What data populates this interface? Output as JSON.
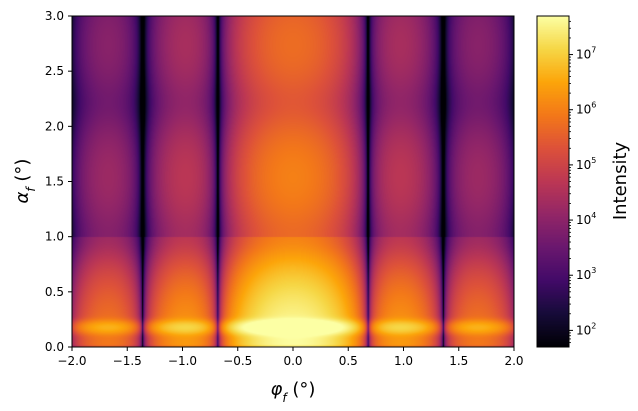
{
  "chart_data": {
    "type": "heatmap",
    "title": "",
    "xlabel": "φ_f (°)",
    "ylabel": "α_f (°)",
    "xlim": [
      -2.0,
      2.0
    ],
    "ylim": [
      0.0,
      3.0
    ],
    "xticks": [
      -2.0,
      -1.5,
      -1.0,
      -0.5,
      0.0,
      0.5,
      1.0,
      1.5,
      2.0
    ],
    "xtick_labels": [
      "−2.0",
      "−1.5",
      "−1.0",
      "−0.5",
      "0.0",
      "0.5",
      "1.0",
      "1.5",
      "2.0"
    ],
    "yticks": [
      0.0,
      0.5,
      1.0,
      1.5,
      2.0,
      2.5,
      3.0
    ],
    "ytick_labels": [
      "0.0",
      "0.5",
      "1.0",
      "1.5",
      "2.0",
      "2.5",
      "3.0"
    ],
    "colormap": "inferno",
    "colorbar": {
      "label": "Intensity",
      "scale": "log",
      "range": [
        50,
        50000000
      ],
      "ticks": [
        100,
        1000,
        10000,
        100000,
        1000000,
        10000000
      ],
      "tick_exponents": [
        "2",
        "3",
        "4",
        "5",
        "6",
        "7"
      ],
      "tick_base": "10"
    },
    "intensity_model": {
      "description_values": {
        "peak_intensity": 40000000,
        "minimum_intensity": 50,
        "lateral_minima_phi": [
          -1.9,
          -1.3,
          -0.68,
          0.68,
          1.3,
          1.9
        ],
        "vertical_minima_alpha": [
          1.0,
          2.2
        ],
        "yoneda_peak_alpha": 0.18
      }
    }
  }
}
